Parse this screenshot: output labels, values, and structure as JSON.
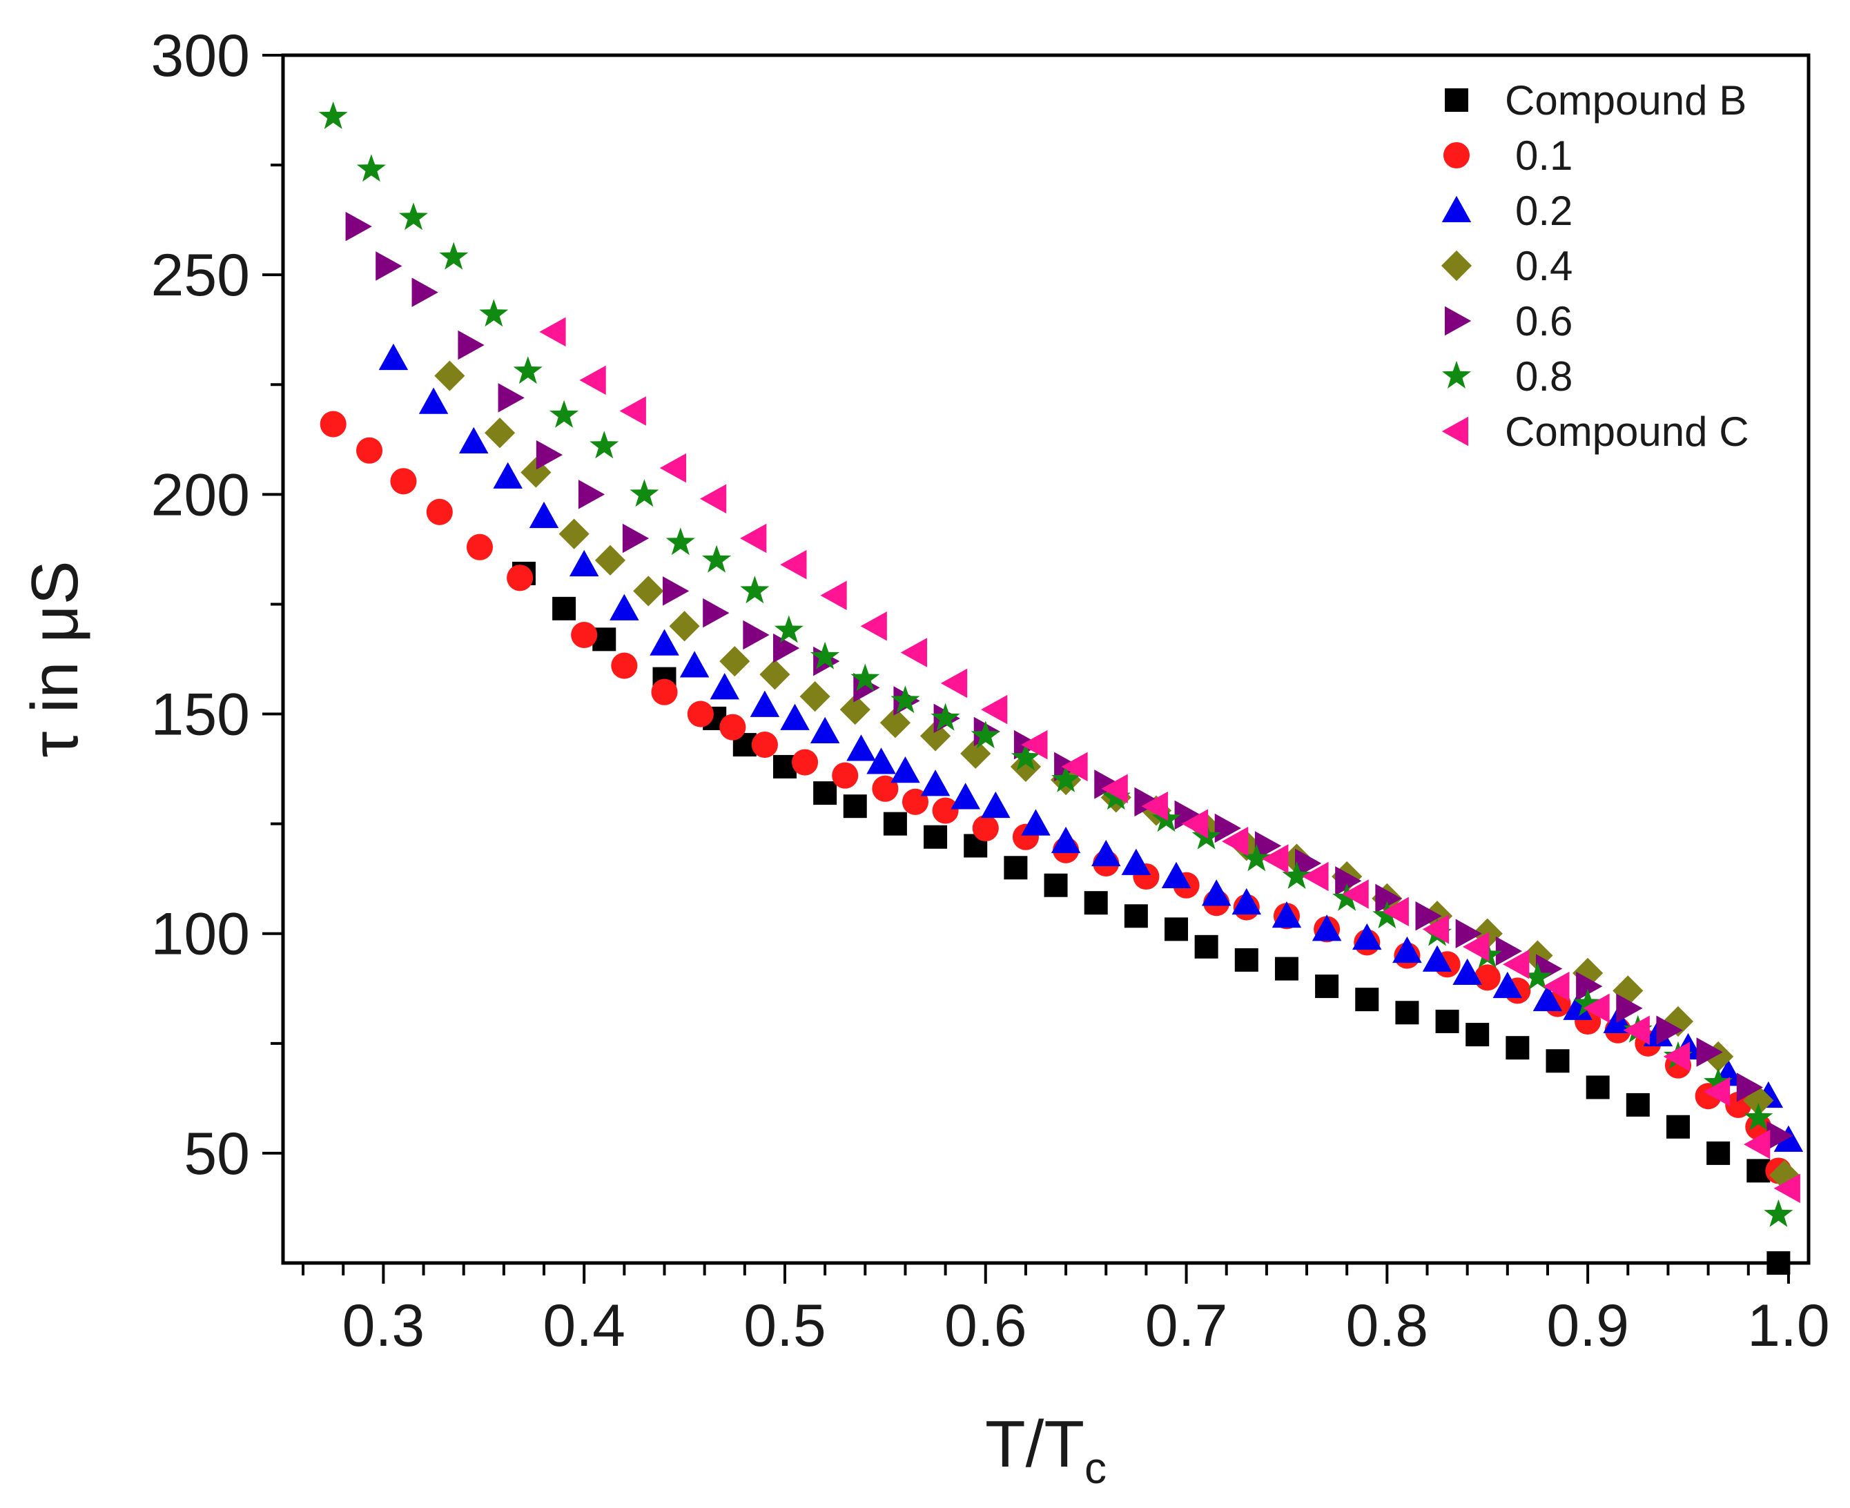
{
  "chart_data": {
    "type": "scatter",
    "title": "",
    "xlabel": "T/T",
    "xlabel_subscript": "c",
    "ylabel": "τ in μS",
    "xlim": [
      0.25,
      1.01
    ],
    "ylim": [
      25,
      300
    ],
    "x_ticks": [
      0.3,
      0.4,
      0.5,
      0.6,
      0.7,
      0.8,
      0.9,
      1.0
    ],
    "x_tick_labels": [
      "0.3",
      "0.4",
      "0.5",
      "0.6",
      "0.7",
      "0.8",
      "0.9",
      "1.0"
    ],
    "y_ticks": [
      50,
      100,
      150,
      200,
      250,
      300
    ],
    "y_tick_labels": [
      "50",
      "100",
      "150",
      "200",
      "250",
      "300"
    ],
    "grid": false,
    "legend_position": "top-right",
    "series": [
      {
        "name": "Compound B",
        "marker": "square",
        "color": "#000000",
        "x": [
          0.37,
          0.39,
          0.41,
          0.44,
          0.465,
          0.48,
          0.5,
          0.52,
          0.535,
          0.555,
          0.575,
          0.595,
          0.615,
          0.635,
          0.655,
          0.675,
          0.695,
          0.71,
          0.73,
          0.75,
          0.77,
          0.79,
          0.81,
          0.83,
          0.845,
          0.865,
          0.885,
          0.905,
          0.925,
          0.945,
          0.965,
          0.985,
          0.995
        ],
        "y": [
          182,
          174,
          167,
          158,
          149,
          143,
          138,
          132,
          129,
          125,
          122,
          120,
          115,
          111,
          107,
          104,
          101,
          97,
          94,
          92,
          88,
          85,
          82,
          80,
          77,
          74,
          71,
          65,
          61,
          56,
          50,
          46,
          25
        ]
      },
      {
        "name": "0.1",
        "marker": "circle",
        "color": "#ff1a1a",
        "x": [
          0.275,
          0.293,
          0.31,
          0.328,
          0.348,
          0.368,
          0.4,
          0.42,
          0.44,
          0.458,
          0.474,
          0.49,
          0.51,
          0.53,
          0.55,
          0.565,
          0.58,
          0.6,
          0.62,
          0.64,
          0.66,
          0.68,
          0.7,
          0.715,
          0.73,
          0.75,
          0.77,
          0.79,
          0.81,
          0.83,
          0.85,
          0.865,
          0.885,
          0.9,
          0.915,
          0.93,
          0.945,
          0.96,
          0.975,
          0.985,
          0.995
        ],
        "y": [
          216,
          210,
          203,
          196,
          188,
          181,
          168,
          161,
          155,
          150,
          147,
          143,
          139,
          136,
          133,
          130,
          128,
          124,
          122,
          119,
          116,
          113,
          111,
          107,
          106,
          104,
          101,
          98,
          95,
          93,
          90,
          87,
          84,
          80,
          78,
          75,
          70,
          63,
          61,
          56,
          46
        ]
      },
      {
        "name": "0.2",
        "marker": "triangle-up",
        "color": "#0000ee",
        "x": [
          0.305,
          0.325,
          0.345,
          0.362,
          0.38,
          0.4,
          0.42,
          0.44,
          0.455,
          0.47,
          0.49,
          0.505,
          0.52,
          0.538,
          0.548,
          0.56,
          0.575,
          0.59,
          0.605,
          0.625,
          0.64,
          0.66,
          0.675,
          0.695,
          0.715,
          0.73,
          0.75,
          0.77,
          0.79,
          0.81,
          0.825,
          0.84,
          0.86,
          0.88,
          0.895,
          0.915,
          0.935,
          0.95,
          0.97,
          0.99,
          1.0
        ],
        "y": [
          231,
          221,
          212,
          204,
          195,
          184,
          174,
          166,
          161,
          156,
          152,
          149,
          146,
          142,
          139,
          137,
          134,
          131,
          129,
          125,
          121,
          118,
          116,
          113,
          109,
          107,
          104,
          101,
          99,
          96,
          94,
          91,
          88,
          85,
          83,
          80,
          77,
          74,
          68,
          63,
          53
        ]
      },
      {
        "name": "0.4",
        "marker": "diamond",
        "color": "#808019",
        "x": [
          0.333,
          0.358,
          0.376,
          0.395,
          0.413,
          0.432,
          0.45,
          0.475,
          0.495,
          0.515,
          0.535,
          0.555,
          0.575,
          0.595,
          0.62,
          0.64,
          0.665,
          0.685,
          0.71,
          0.73,
          0.755,
          0.78,
          0.8,
          0.825,
          0.85,
          0.875,
          0.9,
          0.92,
          0.945,
          0.965,
          0.985,
          0.998
        ],
        "y": [
          227,
          214,
          205,
          191,
          185,
          178,
          170,
          162,
          159,
          154,
          151,
          148,
          145,
          141,
          138,
          135,
          131,
          128,
          124,
          120,
          117,
          113,
          108,
          104,
          100,
          95,
          91,
          87,
          80,
          72,
          62,
          45
        ]
      },
      {
        "name": "0.6",
        "marker": "triangle-right",
        "color": "#800080",
        "x": [
          0.287,
          0.302,
          0.32,
          0.343,
          0.363,
          0.382,
          0.403,
          0.425,
          0.445,
          0.465,
          0.485,
          0.5,
          0.52,
          0.54,
          0.56,
          0.58,
          0.6,
          0.62,
          0.64,
          0.66,
          0.68,
          0.7,
          0.72,
          0.74,
          0.76,
          0.78,
          0.8,
          0.82,
          0.84,
          0.86,
          0.88,
          0.9,
          0.92,
          0.94,
          0.96,
          0.98,
          0.995
        ],
        "y": [
          261,
          252,
          246,
          234,
          222,
          209,
          200,
          190,
          178,
          173,
          168,
          165,
          162,
          156,
          153,
          149,
          146,
          143,
          138,
          134,
          130,
          127,
          124,
          120,
          116,
          112,
          108,
          104,
          100,
          96,
          92,
          88,
          83,
          78,
          73,
          65,
          54
        ]
      },
      {
        "name": "0.8",
        "marker": "star",
        "color": "#108a10",
        "x": [
          0.275,
          0.294,
          0.315,
          0.335,
          0.355,
          0.372,
          0.39,
          0.41,
          0.43,
          0.448,
          0.466,
          0.485,
          0.502,
          0.52,
          0.54,
          0.56,
          0.58,
          0.6,
          0.62,
          0.64,
          0.665,
          0.69,
          0.71,
          0.735,
          0.755,
          0.78,
          0.8,
          0.825,
          0.85,
          0.875,
          0.9,
          0.925,
          0.945,
          0.965,
          0.985,
          0.995
        ],
        "y": [
          286,
          274,
          263,
          254,
          241,
          228,
          218,
          211,
          200,
          189,
          185,
          178,
          169,
          163,
          158,
          153,
          149,
          145,
          140,
          135,
          131,
          126,
          122,
          117,
          113,
          108,
          104,
          100,
          95,
          90,
          84,
          78,
          72,
          66,
          58,
          36
        ]
      },
      {
        "name": "Compound C",
        "marker": "triangle-left",
        "color": "#ff1493",
        "x": [
          0.385,
          0.405,
          0.425,
          0.445,
          0.465,
          0.485,
          0.505,
          0.525,
          0.545,
          0.565,
          0.585,
          0.605,
          0.625,
          0.645,
          0.665,
          0.685,
          0.705,
          0.725,
          0.745,
          0.765,
          0.785,
          0.805,
          0.825,
          0.845,
          0.865,
          0.885,
          0.905,
          0.925,
          0.945,
          0.965,
          0.985,
          1.0
        ],
        "y": [
          237,
          226,
          219,
          206,
          199,
          190,
          184,
          177,
          170,
          164,
          157,
          151,
          143,
          138,
          133,
          129,
          125,
          121,
          117,
          113,
          109,
          105,
          101,
          97,
          93,
          88,
          83,
          78,
          72,
          64,
          52,
          42
        ]
      }
    ]
  }
}
